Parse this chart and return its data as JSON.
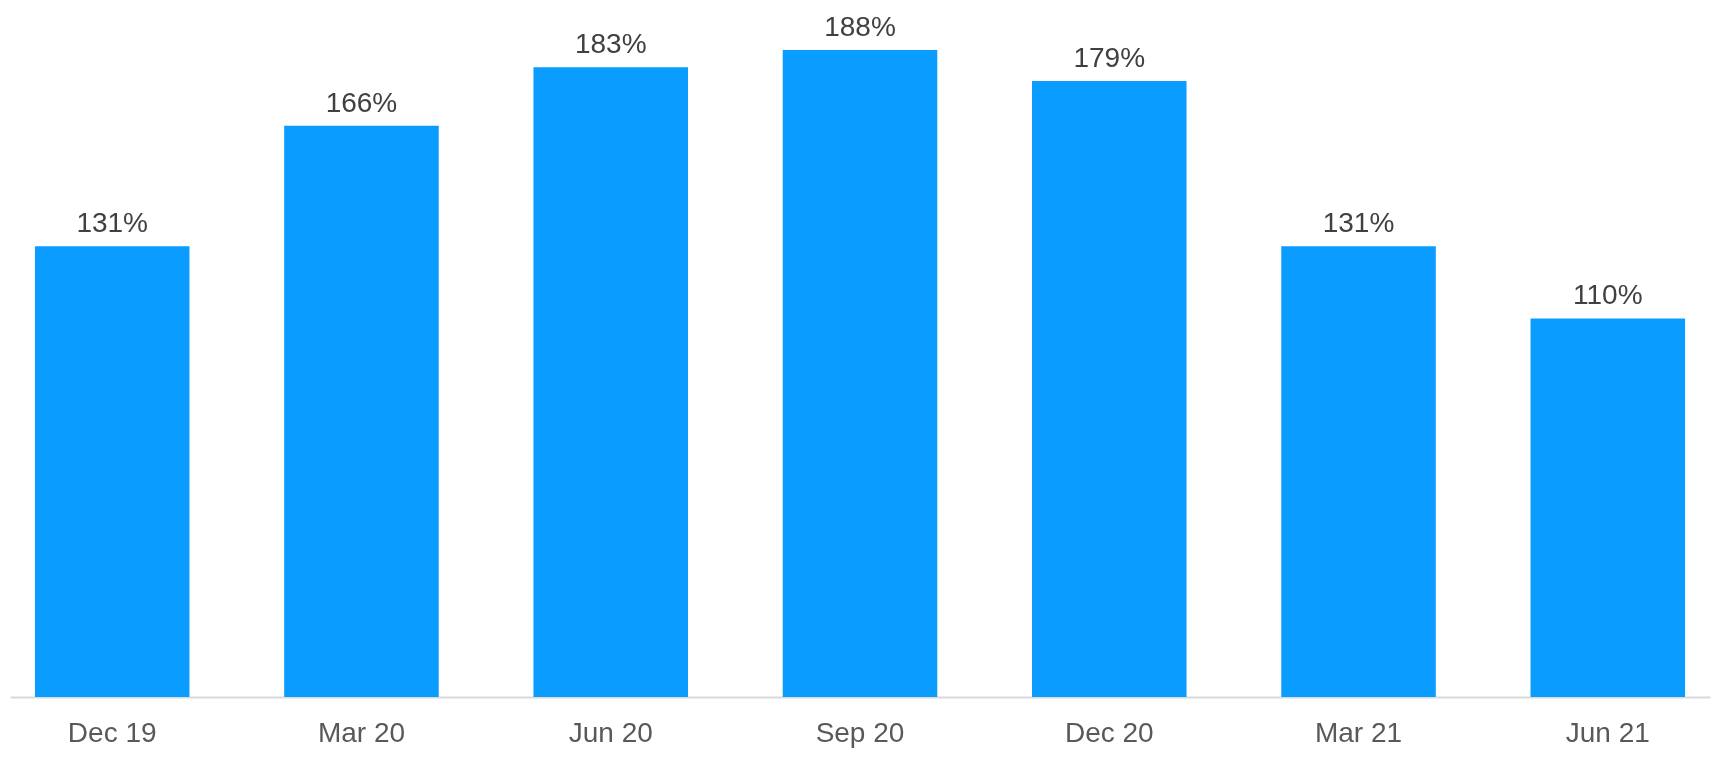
{
  "chart_data": {
    "type": "bar",
    "categories": [
      "Dec 19",
      "Mar 20",
      "Jun 20",
      "Sep 20",
      "Dec 20",
      "Mar 21",
      "Jun 21"
    ],
    "values": [
      131,
      166,
      183,
      188,
      179,
      131,
      110
    ],
    "value_labels": [
      "131%",
      "166%",
      "183%",
      "188%",
      "179%",
      "131%",
      "110%"
    ],
    "color": "#0a9dff"
  }
}
